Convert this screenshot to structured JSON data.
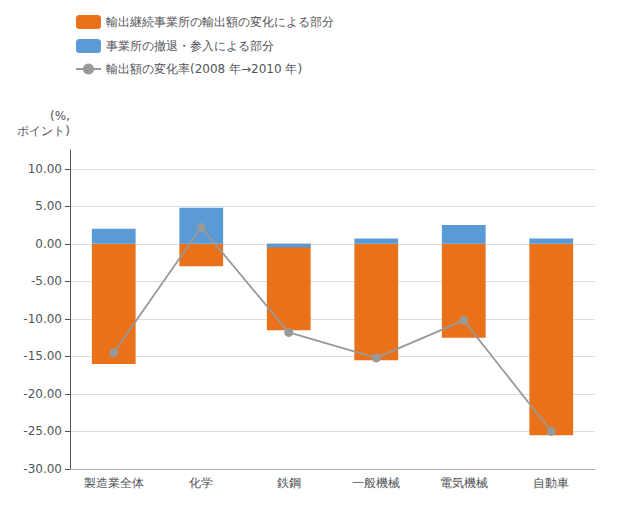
{
  "chart_data": {
    "type": "bar",
    "ylabel": "(%,\nポイント)",
    "categories": [
      "製造業全体",
      "化学",
      "鉄鋼",
      "一般機械",
      "電気機械",
      "自動車"
    ],
    "series": [
      {
        "name": "輸出継続事業所の輸出額の変化による部分",
        "type": "bar",
        "color": "#E8711A",
        "values": [
          -16.0,
          -3.0,
          -11.5,
          -15.5,
          -12.5,
          -25.5
        ]
      },
      {
        "name": "事業所の撤退・参入による部分",
        "type": "bar",
        "color": "#5B9BD5",
        "values": [
          2.0,
          4.8,
          -0.5,
          0.7,
          2.5,
          0.7
        ]
      },
      {
        "name": "輸出額の変化率(2008 年→2010 年)",
        "type": "line",
        "color": "#999999",
        "marker": "circle",
        "values": [
          -14.5,
          2.2,
          -11.8,
          -15.2,
          -10.2,
          -25.0
        ]
      }
    ],
    "ylim": [
      -30.0,
      12.5
    ],
    "yticks": [
      {
        "value": 10,
        "label": "10.00"
      },
      {
        "value": 5,
        "label": "5.00"
      },
      {
        "value": 0,
        "label": "0.00"
      },
      {
        "value": -5,
        "label": "-5.00"
      },
      {
        "value": -10,
        "label": "-10.00"
      },
      {
        "value": -15,
        "label": "-15.00"
      },
      {
        "value": -20,
        "label": "-20.00"
      },
      {
        "value": -25,
        "label": "-25.00"
      },
      {
        "value": -30,
        "label": "-30.00"
      }
    ],
    "grid": true,
    "legend": "top"
  }
}
